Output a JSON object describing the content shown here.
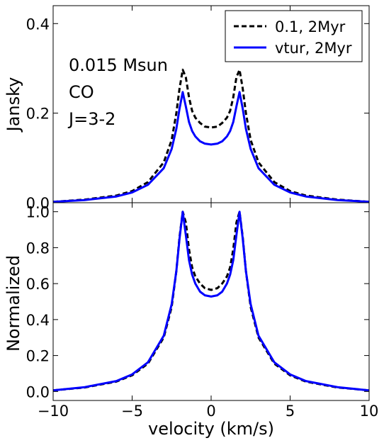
{
  "chart_data": [
    {
      "type": "line",
      "panel": "top",
      "xlabel": "",
      "ylabel": "Jansky",
      "xlim": [
        -10,
        10
      ],
      "ylim": [
        0,
        0.44
      ],
      "yticks": [
        0.0,
        0.2,
        0.4
      ],
      "ytick_labels": [
        "0.0",
        "0.2",
        "0.4"
      ],
      "annotations": [
        "0.015 Msun",
        "CO",
        "J=3-2"
      ],
      "legend": {
        "placement": "top-right"
      },
      "series": [
        {
          "name": "0.1, 2Myr",
          "color": "#000000",
          "style": "dashed",
          "x": [
            -10,
            -8,
            -6,
            -5,
            -4,
            -3,
            -2.5,
            -2.2,
            -2.0,
            -1.8,
            -1.6,
            -1.4,
            -1.2,
            -1.0,
            -0.7,
            -0.4,
            0,
            0.4,
            0.7,
            1.0,
            1.2,
            1.4,
            1.6,
            1.8,
            2.0,
            2.2,
            2.5,
            3,
            4,
            5,
            6,
            8,
            10
          ],
          "values": [
            0.002,
            0.007,
            0.016,
            0.026,
            0.046,
            0.09,
            0.14,
            0.2,
            0.255,
            0.297,
            0.28,
            0.235,
            0.205,
            0.19,
            0.178,
            0.17,
            0.168,
            0.17,
            0.178,
            0.19,
            0.205,
            0.235,
            0.28,
            0.297,
            0.255,
            0.2,
            0.14,
            0.09,
            0.046,
            0.026,
            0.016,
            0.007,
            0.002
          ]
        },
        {
          "name": "vtur, 2Myr",
          "color": "#0000ff",
          "style": "solid",
          "x": [
            -10,
            -8,
            -6,
            -5,
            -4,
            -3,
            -2.5,
            -2.2,
            -2.0,
            -1.8,
            -1.6,
            -1.4,
            -1.2,
            -1.0,
            -0.7,
            -0.4,
            0,
            0.4,
            0.7,
            1.0,
            1.2,
            1.4,
            1.6,
            1.8,
            2.0,
            2.2,
            2.5,
            3,
            4,
            5,
            6,
            8,
            10
          ],
          "values": [
            0.002,
            0.006,
            0.014,
            0.023,
            0.04,
            0.077,
            0.12,
            0.165,
            0.21,
            0.247,
            0.215,
            0.18,
            0.16,
            0.148,
            0.137,
            0.132,
            0.13,
            0.132,
            0.137,
            0.148,
            0.16,
            0.18,
            0.215,
            0.247,
            0.21,
            0.165,
            0.12,
            0.077,
            0.04,
            0.023,
            0.014,
            0.006,
            0.002
          ]
        }
      ]
    },
    {
      "type": "line",
      "panel": "bottom",
      "xlabel": "velocity (km/s)",
      "ylabel": "Normalized",
      "xlim": [
        -10,
        10
      ],
      "ylim": [
        -0.05,
        1.05
      ],
      "xticks": [
        -10,
        -5,
        0,
        5,
        10
      ],
      "xtick_labels": [
        "−10",
        "−5",
        "0",
        "5",
        "10"
      ],
      "yticks": [
        0.0,
        0.2,
        0.4,
        0.6,
        0.8,
        1.0
      ],
      "ytick_labels": [
        "0.0",
        "0.2",
        "0.4",
        "0.6",
        "0.8",
        "1.0"
      ],
      "series": [
        {
          "name": "0.1, 2Myr",
          "color": "#000000",
          "style": "dashed",
          "x": [
            -10,
            -8,
            -6,
            -5,
            -4,
            -3,
            -2.5,
            -2.2,
            -2.0,
            -1.8,
            -1.6,
            -1.4,
            -1.2,
            -1.0,
            -0.7,
            -0.4,
            0,
            0.4,
            0.7,
            1.0,
            1.2,
            1.4,
            1.6,
            1.8,
            2.0,
            2.2,
            2.5,
            3,
            4,
            5,
            6,
            8,
            10
          ],
          "values": [
            0.006,
            0.022,
            0.055,
            0.09,
            0.155,
            0.3,
            0.47,
            0.67,
            0.86,
            1.0,
            0.94,
            0.79,
            0.69,
            0.64,
            0.6,
            0.575,
            0.565,
            0.575,
            0.6,
            0.64,
            0.69,
            0.79,
            0.94,
            1.0,
            0.86,
            0.67,
            0.47,
            0.3,
            0.155,
            0.09,
            0.055,
            0.022,
            0.006
          ]
        },
        {
          "name": "vtur, 2Myr",
          "color": "#0000ff",
          "style": "solid",
          "x": [
            -10,
            -8,
            -6,
            -5,
            -4,
            -3,
            -2.5,
            -2.2,
            -2.0,
            -1.8,
            -1.6,
            -1.4,
            -1.2,
            -1.0,
            -0.7,
            -0.4,
            0,
            0.4,
            0.7,
            1.0,
            1.2,
            1.4,
            1.6,
            1.8,
            2.0,
            2.2,
            2.5,
            3,
            4,
            5,
            6,
            8,
            10
          ],
          "values": [
            0.006,
            0.024,
            0.058,
            0.095,
            0.162,
            0.31,
            0.485,
            0.67,
            0.85,
            1.0,
            0.87,
            0.73,
            0.65,
            0.6,
            0.555,
            0.535,
            0.528,
            0.535,
            0.555,
            0.6,
            0.65,
            0.73,
            0.87,
            1.0,
            0.85,
            0.67,
            0.485,
            0.31,
            0.162,
            0.095,
            0.058,
            0.024,
            0.006
          ]
        }
      ]
    }
  ]
}
